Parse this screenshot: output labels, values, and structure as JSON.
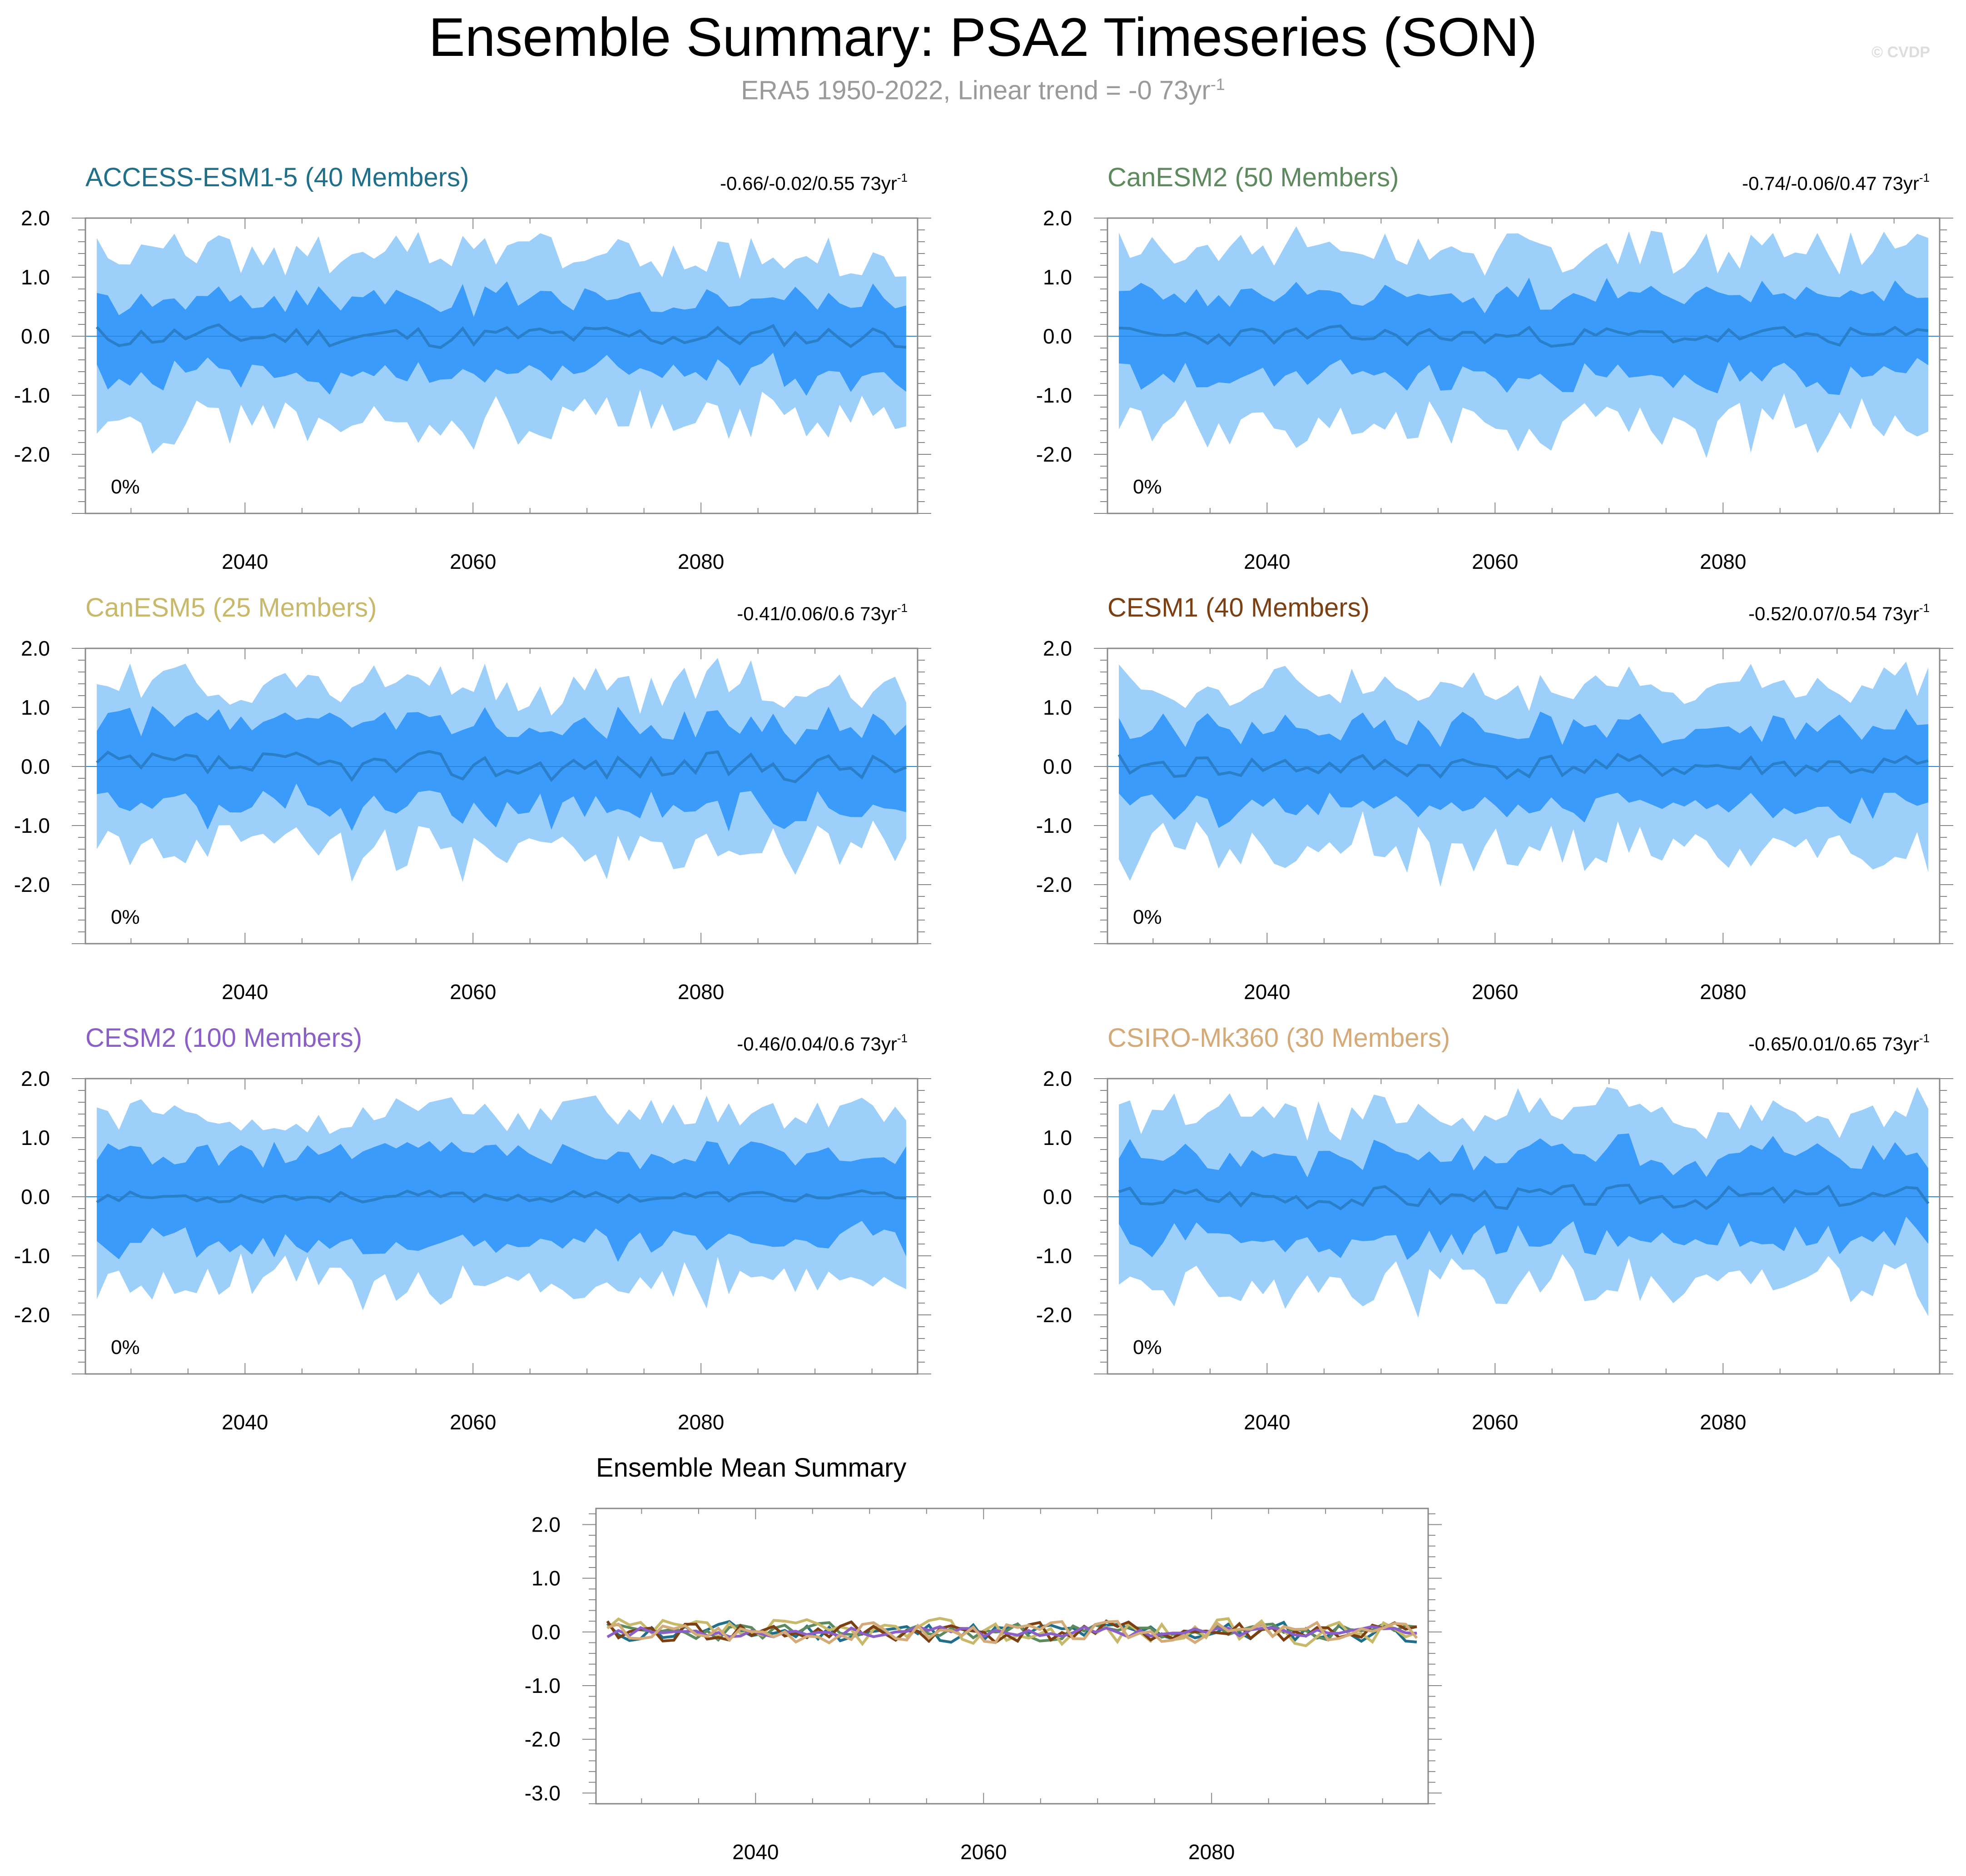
{
  "title": "Ensemble Summary: PSA2 Timeseries (SON)",
  "subtitle_main": "ERA5 1950-2022, Linear trend = -0 73yr",
  "subtitle_sup": "-1",
  "watermark": "© CVDP",
  "colors": {
    "band_outer": "#9dcffb",
    "band_inner": "#3a9bfa",
    "mean_line": "#2a7fc8",
    "axis": "#888888"
  },
  "chart_data": [
    {
      "type": "area",
      "panel": "ACCESS-ESM1-5",
      "title": "ACCESS-ESM1-5 (40 Members)",
      "title_color": "#1f6f8b",
      "trend_label": "-0.66/-0.02/0.55 73yr",
      "trend_sup": "-1",
      "percent_label": "0%",
      "x_range": [
        2026,
        2099
      ],
      "x_ticks": [
        "2040",
        "2060",
        "2080"
      ],
      "x_tick_values": [
        2040,
        2060,
        2080
      ],
      "ylim": [
        -3.0,
        2.0
      ],
      "y_ticks": [
        "2.0",
        "1.0",
        "0.0",
        "-1.0",
        "-2.0"
      ],
      "y_tick_values": [
        2,
        1,
        0,
        -1,
        -2
      ],
      "seed": 11,
      "mean_amp": 0.12,
      "inner_width": 0.62,
      "outer_width": 1.32
    },
    {
      "type": "area",
      "panel": "CanESM2",
      "title": "CanESM2 (50 Members)",
      "title_color": "#5d8a5d",
      "trend_label": "-0.74/-0.06/0.47 73yr",
      "trend_sup": "-1",
      "percent_label": "0%",
      "x_range": [
        2026,
        2099
      ],
      "x_ticks": [
        "2040",
        "2060",
        "2080"
      ],
      "x_tick_values": [
        2040,
        2060,
        2080
      ],
      "ylim": [
        -3.0,
        2.0
      ],
      "y_ticks": [
        "2.0",
        "1.0",
        "0.0",
        "-1.0",
        "-2.0"
      ],
      "y_tick_values": [
        2,
        1,
        0,
        -1,
        -2
      ],
      "seed": 23,
      "mean_amp": 0.1,
      "inner_width": 0.66,
      "outer_width": 1.4
    },
    {
      "type": "area",
      "panel": "CanESM5",
      "title": "CanESM5 (25 Members)",
      "title_color": "#c8b96a",
      "trend_label": "-0.41/0.06/0.6 73yr",
      "trend_sup": "-1",
      "percent_label": "0%",
      "x_range": [
        2026,
        2099
      ],
      "x_ticks": [
        "2040",
        "2060",
        "2080"
      ],
      "x_tick_values": [
        2040,
        2060,
        2080
      ],
      "ylim": [
        -3.0,
        2.0
      ],
      "y_ticks": [
        "2.0",
        "1.0",
        "0.0",
        "-1.0",
        "-2.0"
      ],
      "y_tick_values": [
        2,
        1,
        0,
        -1,
        -2
      ],
      "seed": 37,
      "mean_amp": 0.15,
      "inner_width": 0.68,
      "outer_width": 1.3
    },
    {
      "type": "area",
      "panel": "CESM1",
      "title": "CESM1 (40 Members)",
      "title_color": "#7b3f12",
      "trend_label": "-0.52/0.07/0.54 73yr",
      "trend_sup": "-1",
      "percent_label": "0%",
      "x_range": [
        2026,
        2099
      ],
      "x_ticks": [
        "2040",
        "2060",
        "2080"
      ],
      "x_tick_values": [
        2040,
        2060,
        2080
      ],
      "ylim": [
        -3.0,
        2.0
      ],
      "y_ticks": [
        "2.0",
        "1.0",
        "0.0",
        "-1.0",
        "-2.0"
      ],
      "y_tick_values": [
        2,
        1,
        0,
        -1,
        -2
      ],
      "seed": 41,
      "mean_amp": 0.13,
      "inner_width": 0.64,
      "outer_width": 1.3
    },
    {
      "type": "area",
      "panel": "CESM2",
      "title": "CESM2 (100 Members)",
      "title_color": "#8a5fc8",
      "trend_label": "-0.46/0.04/0.6 73yr",
      "trend_sup": "-1",
      "percent_label": "0%",
      "x_range": [
        2026,
        2099
      ],
      "x_ticks": [
        "2040",
        "2060",
        "2080"
      ],
      "x_tick_values": [
        2040,
        2060,
        2080
      ],
      "ylim": [
        -3.0,
        2.0
      ],
      "y_ticks": [
        "2.0",
        "1.0",
        "0.0",
        "-1.0",
        "-2.0"
      ],
      "y_tick_values": [
        2,
        1,
        0,
        -1,
        -2
      ],
      "seed": 53,
      "mean_amp": 0.06,
      "inner_width": 0.72,
      "outer_width": 1.35
    },
    {
      "type": "area",
      "panel": "CSIRO-Mk360",
      "title": "CSIRO-Mk360 (30 Members)",
      "title_color": "#d4aa78",
      "trend_label": "-0.65/0.01/0.65 73yr",
      "trend_sup": "-1",
      "percent_label": "0%",
      "x_range": [
        2026,
        2099
      ],
      "x_ticks": [
        "2040",
        "2060",
        "2080"
      ],
      "x_tick_values": [
        2040,
        2060,
        2080
      ],
      "ylim": [
        -3.0,
        2.0
      ],
      "y_ticks": [
        "2.0",
        "1.0",
        "0.0",
        "-1.0",
        "-2.0"
      ],
      "y_tick_values": [
        2,
        1,
        0,
        -1,
        -2
      ],
      "seed": 67,
      "mean_amp": 0.12,
      "inner_width": 0.68,
      "outer_width": 1.4
    },
    {
      "type": "line",
      "panel": "ensemble-mean",
      "title": "Ensemble Mean Summary",
      "title_color": "#000000",
      "x_range": [
        2026,
        2099
      ],
      "x_ticks": [
        "2040",
        "2060",
        "2080"
      ],
      "x_tick_values": [
        2040,
        2060,
        2080
      ],
      "ylim": [
        -3.2,
        2.3
      ],
      "y_ticks": [
        "2.0",
        "1.0",
        "0.0",
        "-1.0",
        "-2.0",
        "-3.0"
      ],
      "y_tick_values": [
        2,
        1,
        0,
        -1,
        -2,
        -3
      ],
      "series": [
        {
          "name": "ACCESS-ESM1-5",
          "color": "#1f6f8b",
          "seed": 11,
          "amp": 0.12
        },
        {
          "name": "CanESM2",
          "color": "#5d8a5d",
          "seed": 23,
          "amp": 0.1
        },
        {
          "name": "CanESM5",
          "color": "#c8b96a",
          "seed": 37,
          "amp": 0.15
        },
        {
          "name": "CESM1",
          "color": "#7b3f12",
          "seed": 41,
          "amp": 0.13
        },
        {
          "name": "CESM2",
          "color": "#8a5fc8",
          "seed": 53,
          "amp": 0.06
        },
        {
          "name": "CSIRO-Mk360",
          "color": "#d4aa78",
          "seed": 67,
          "amp": 0.12
        }
      ]
    }
  ]
}
